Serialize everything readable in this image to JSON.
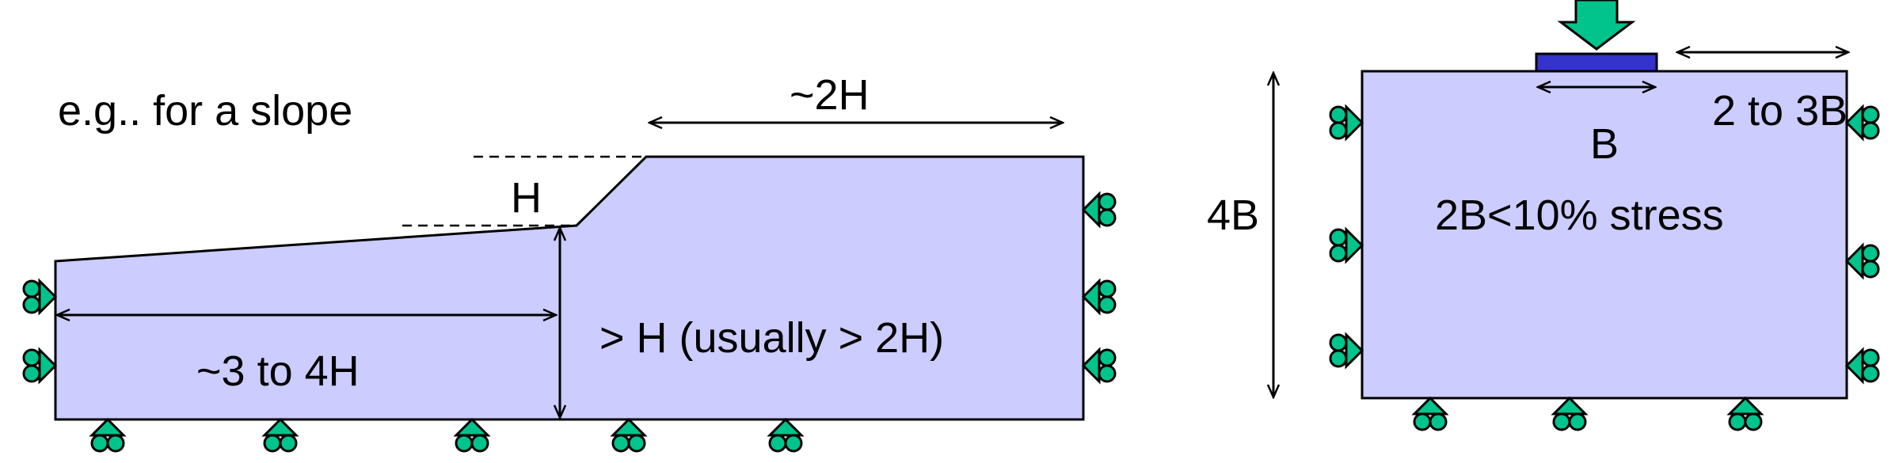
{
  "slope_panel": {
    "caption": "e.g.. for a slope",
    "label_H": "H",
    "label_2H": "~2H",
    "label_3to4H": "~3 to 4H",
    "label_depth": "> H (usually > 2H)"
  },
  "footing_panel": {
    "label_4B": "4B",
    "label_B": "B",
    "label_2to3B": "2 to 3B",
    "label_stress": "2B<10% stress"
  },
  "colors": {
    "domain_fill": "#ccccff",
    "support_fill": "#00c48c",
    "load_fill": "#00c48c",
    "footing_fill": "#3333cc",
    "line": "#000000"
  },
  "icons": {
    "roller_support": "roller-support-icon",
    "load_arrow": "load-arrow-icon"
  }
}
